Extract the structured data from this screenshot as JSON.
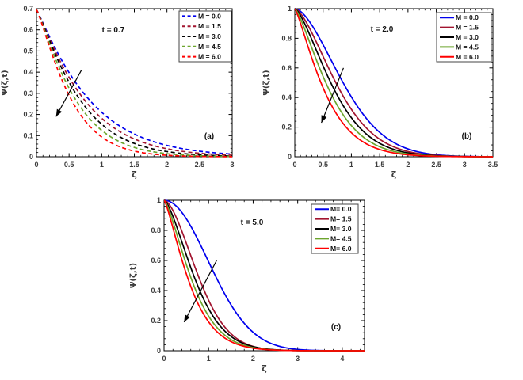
{
  "figure": {
    "background": "#ffffff",
    "series_colors": {
      "M_0.0": "#0000ee",
      "M_1.5": "#a2142f",
      "M_3.0": "#000000",
      "M_4.5": "#6ca52d",
      "M_6.0": "#ff0000"
    }
  },
  "chart_data": [
    {
      "type": "line",
      "panel_label": "(a)",
      "annotation": "t = 0.7",
      "xlabel": "ζ",
      "ylabel": "Ψ(ζ,t)",
      "xlim": [
        0,
        3
      ],
      "ylim": [
        0,
        0.7
      ],
      "xticks": [
        0,
        0.5,
        1,
        1.5,
        2,
        2.5,
        3
      ],
      "xtick_labels": [
        "0",
        "0.5",
        "1",
        "1.5",
        "2",
        "2.5",
        "3"
      ],
      "yticks": [
        0,
        0.1,
        0.2,
        0.3,
        0.4,
        0.5,
        0.6,
        0.7
      ],
      "ytick_labels": [
        "0",
        "0.1",
        "0.2",
        "0.3",
        "0.4",
        "0.5",
        "0.6",
        "0.7"
      ],
      "grid": false,
      "line_style": "dashed",
      "legend_position": "top-right",
      "curve_model": "y = y0 * exp(-(x/w)^p)",
      "series": [
        {
          "name": "M = 0.0",
          "color": "#0000ee",
          "y0": 0.695,
          "p": 1.1,
          "w": 0.85
        },
        {
          "name": "M = 1.5",
          "color": "#a2142f",
          "y0": 0.695,
          "p": 1.12,
          "w": 0.77
        },
        {
          "name": "M = 3.0",
          "color": "#000000",
          "y0": 0.695,
          "p": 1.15,
          "w": 0.7
        },
        {
          "name": "M = 4.5",
          "color": "#6ca52d",
          "y0": 0.695,
          "p": 1.17,
          "w": 0.63
        },
        {
          "name": "M = 6.0",
          "color": "#ff0000",
          "y0": 0.695,
          "p": 1.2,
          "w": 0.56
        }
      ],
      "arrow": {
        "from": [
          0.69,
          0.41
        ],
        "to": [
          0.3,
          0.19
        ]
      }
    },
    {
      "type": "line",
      "panel_label": "(b)",
      "annotation": "t = 2.0",
      "xlabel": "ζ",
      "ylabel": "Ψ(ζ,t)",
      "xlim": [
        0,
        3.5
      ],
      "ylim": [
        0,
        1
      ],
      "xticks": [
        0,
        0.5,
        1,
        1.5,
        2,
        2.5,
        3,
        3.5
      ],
      "xtick_labels": [
        "0",
        "0.5",
        "1",
        "1.5",
        "2",
        "2.5",
        "3",
        "3.5"
      ],
      "yticks": [
        0,
        0.2,
        0.4,
        0.6,
        0.8,
        1
      ],
      "ytick_labels": [
        "0",
        "0.2",
        "0.4",
        "0.6",
        "0.8",
        "1"
      ],
      "grid": false,
      "line_style": "solid",
      "legend_position": "top-right",
      "curve_model": "y = y0 * exp(-(x/w)^p)",
      "series": [
        {
          "name": "M = 0.0",
          "color": "#0000ee",
          "y0": 1,
          "p": 1.7,
          "w": 1.06
        },
        {
          "name": "M = 1.5",
          "color": "#a2142f",
          "y0": 1,
          "p": 1.55,
          "w": 0.92
        },
        {
          "name": "M = 3.0",
          "color": "#000000",
          "y0": 1,
          "p": 1.45,
          "w": 0.82
        },
        {
          "name": "M = 4.5",
          "color": "#6ca52d",
          "y0": 1,
          "p": 1.35,
          "w": 0.72
        },
        {
          "name": "M = 6.0",
          "color": "#ff0000",
          "y0": 1,
          "p": 1.25,
          "w": 0.62
        }
      ],
      "arrow": {
        "from": [
          0.86,
          0.6
        ],
        "to": [
          0.47,
          0.23
        ]
      }
    },
    {
      "type": "line",
      "panel_label": "(c)",
      "annotation": "t = 5.0",
      "xlabel": "ζ",
      "ylabel": "Ψ(ζ,t)",
      "xlim": [
        0,
        4.5
      ],
      "ylim": [
        0,
        1
      ],
      "xticks": [
        0,
        1,
        2,
        3,
        4
      ],
      "xtick_labels": [
        "0",
        "1",
        "2",
        "3",
        "4"
      ],
      "yticks": [
        0,
        0.2,
        0.4,
        0.6,
        0.8,
        1
      ],
      "ytick_labels": [
        "0",
        "0.2",
        "0.4",
        "0.6",
        "0.8",
        "1"
      ],
      "grid": false,
      "line_style": "solid",
      "legend_position": "top-right",
      "curve_model": "y = y0 * exp(-(x/w)^p)",
      "series": [
        {
          "name": "M= 0.0",
          "color": "#0000ee",
          "y0": 1,
          "p": 2.0,
          "w": 1.38
        },
        {
          "name": "M= 1.5",
          "color": "#a2142f",
          "y0": 1,
          "p": 1.7,
          "w": 0.95
        },
        {
          "name": "M= 3.0",
          "color": "#000000",
          "y0": 1,
          "p": 1.5,
          "w": 0.85
        },
        {
          "name": "M= 4.5",
          "color": "#6ca52d",
          "y0": 1,
          "p": 1.4,
          "w": 0.76
        },
        {
          "name": "M= 6.0",
          "color": "#ff0000",
          "y0": 1,
          "p": 1.3,
          "w": 0.68
        }
      ],
      "arrow": {
        "from": [
          1.18,
          0.6
        ],
        "to": [
          0.45,
          0.19
        ]
      }
    }
  ]
}
